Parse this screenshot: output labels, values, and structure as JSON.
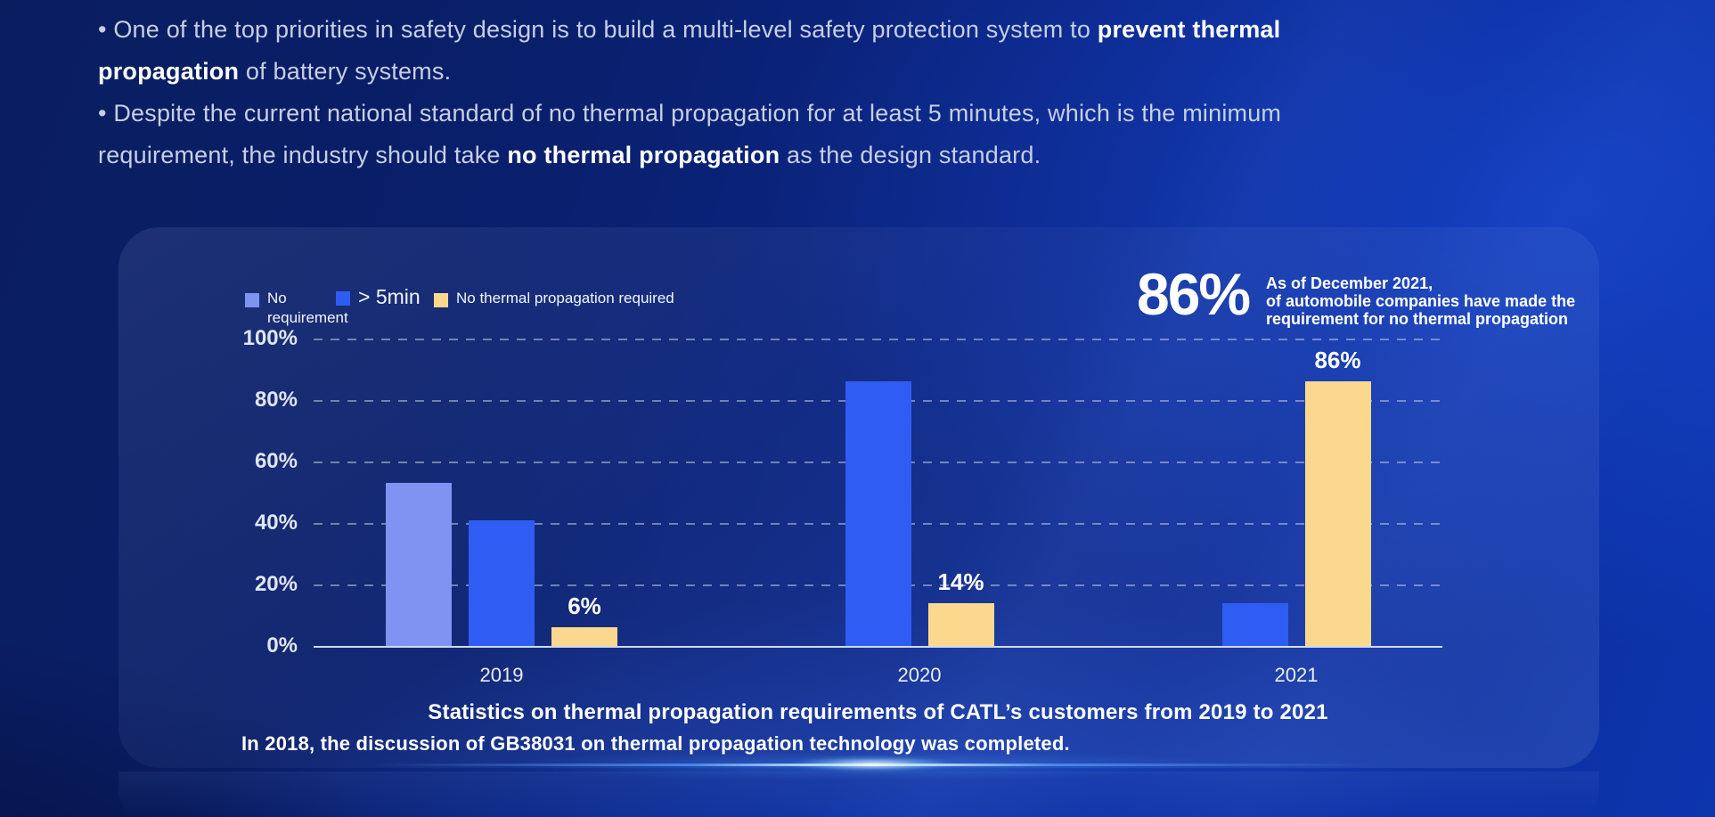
{
  "intro": {
    "lines": [
      [
        {
          "text": "• One of the top priorities in safety design is to build a multi-level safety protection system to ",
          "bold": false
        },
        {
          "text": "prevent thermal",
          "bold": true
        }
      ],
      [
        {
          "text": "propagation",
          "bold": true
        },
        {
          "text": " of battery systems.",
          "bold": false
        }
      ],
      [
        {
          "text": "• Despite the current national standard of no thermal propagation for at least 5 minutes, which is the minimum",
          "bold": false
        }
      ],
      [
        {
          "text": "requirement, the industry should take ",
          "bold": false
        },
        {
          "text": "no thermal propagation",
          "bold": true
        },
        {
          "text": " as the design standard.",
          "bold": false
        }
      ]
    ]
  },
  "callout": {
    "number": "86%",
    "lines": [
      "As of December 2021,",
      "of automobile companies have made the",
      "requirement for no thermal propagation"
    ]
  },
  "footnote": "In 2018, the discussion of GB38031 on thermal propagation technology was completed.",
  "chart_data": {
    "type": "bar",
    "title": "Statistics on thermal propagation requirements of CATL’s customers from 2019 to 2021",
    "categories": [
      "2019",
      "2020",
      "2021"
    ],
    "series": [
      {
        "name": "No requirement",
        "color": "#7E93F2",
        "values": [
          53,
          0,
          0
        ],
        "show_value_labels": false
      },
      {
        "name": "> 5min",
        "color": "#2F5CF3",
        "values": [
          41,
          86,
          14
        ],
        "show_value_labels": false
      },
      {
        "name": "No thermal propagation required",
        "color": "#FBD88D",
        "values": [
          6,
          14,
          86
        ],
        "show_value_labels": true
      }
    ],
    "xlabel": "",
    "ylabel": "",
    "ylim": [
      0,
      100
    ],
    "yticks": [
      "0%",
      "20%",
      "40%",
      "60%",
      "80%",
      "100%"
    ],
    "grid": "dashed-horizontal",
    "legend_position": "top-left",
    "value_label_format": "{v}%"
  }
}
